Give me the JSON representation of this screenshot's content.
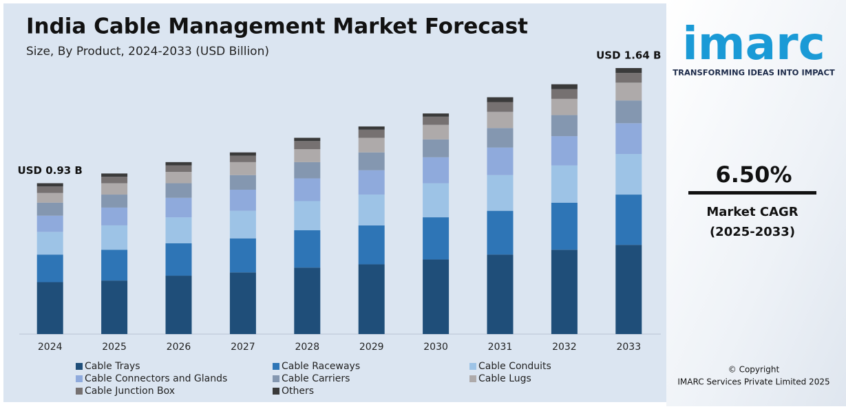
{
  "chart_data": {
    "type": "stacked-bar",
    "title": "India Cable Management Market Forecast",
    "subtitle": "Size, By Product, 2024-2033 (USD Billion)",
    "categories": [
      "2024",
      "2025",
      "2026",
      "2027",
      "2028",
      "2029",
      "2030",
      "2031",
      "2032",
      "2033"
    ],
    "series": [
      {
        "name": "Cable Trays",
        "color": "#1f4e79",
        "values": [
          0.32,
          0.33,
          0.36,
          0.38,
          0.41,
          0.43,
          0.46,
          0.49,
          0.52,
          0.55
        ]
      },
      {
        "name": "Cable Raceways",
        "color": "#2e75b6",
        "values": [
          0.17,
          0.19,
          0.2,
          0.21,
          0.23,
          0.24,
          0.26,
          0.27,
          0.29,
          0.31
        ]
      },
      {
        "name": "Cable Conduits",
        "color": "#9dc3e6",
        "values": [
          0.14,
          0.15,
          0.16,
          0.17,
          0.18,
          0.19,
          0.21,
          0.22,
          0.23,
          0.25
        ]
      },
      {
        "name": "Cable Connectors and Glands",
        "color": "#8faadc",
        "values": [
          0.1,
          0.11,
          0.12,
          0.13,
          0.14,
          0.15,
          0.16,
          0.17,
          0.18,
          0.19
        ]
      },
      {
        "name": "Cable Carriers",
        "color": "#8497b0",
        "values": [
          0.08,
          0.08,
          0.09,
          0.09,
          0.1,
          0.11,
          0.11,
          0.12,
          0.13,
          0.14
        ]
      },
      {
        "name": "Cable Lugs",
        "color": "#aeaaaa",
        "values": [
          0.06,
          0.07,
          0.07,
          0.08,
          0.08,
          0.09,
          0.09,
          0.1,
          0.1,
          0.11
        ]
      },
      {
        "name": "Cable Junction Box",
        "color": "#767171",
        "values": [
          0.04,
          0.04,
          0.04,
          0.04,
          0.05,
          0.05,
          0.05,
          0.06,
          0.06,
          0.06
        ]
      },
      {
        "name": "Others",
        "color": "#3a3a3a",
        "values": [
          0.02,
          0.02,
          0.02,
          0.02,
          0.02,
          0.02,
          0.02,
          0.03,
          0.03,
          0.03
        ]
      }
    ],
    "annotations": [
      "USD 0.93 B",
      "USD 1.64 B"
    ]
  },
  "sidebar": {
    "logo": "imarc",
    "tagline": "TRANSFORMING IDEAS INTO IMPACT",
    "cagr": "6.50%",
    "cagr_label": "Market CAGR",
    "cagr_period": "(2025-2033)",
    "copyright": "© Copyright",
    "company": "IMARC Services Private Limited 2025"
  }
}
